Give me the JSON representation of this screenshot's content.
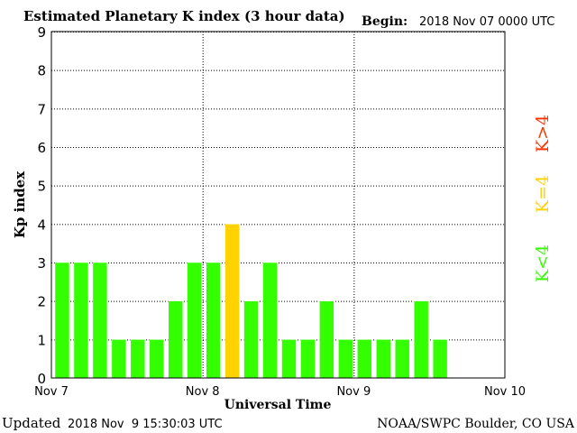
{
  "header": {
    "title": "Estimated Planetary K index (3 hour data)",
    "begin_label": "Begin:",
    "begin_value": "2018 Nov 07 0000 UTC"
  },
  "footer": {
    "updated_label": "Updated",
    "updated_value": "2018 Nov  9 15:30:03 UTC",
    "source": "NOAA/SWPC Boulder, CO USA"
  },
  "legend": {
    "above": "K>4",
    "equal": "K=4",
    "below": "K<4"
  },
  "colors": {
    "below": "#33ff00",
    "equal": "#ffd200",
    "above": "#ff3300",
    "bar_edge": "#ffffff"
  },
  "chart_data": {
    "type": "bar",
    "title": "Estimated Planetary K index (3 hour data)",
    "xlabel": "Universal Time",
    "ylabel": "Kp index",
    "ylim": [
      0,
      9
    ],
    "yticks": [
      "0",
      "1",
      "2",
      "3",
      "4",
      "5",
      "6",
      "7",
      "8",
      "9"
    ],
    "xticks": [
      "Nov 7",
      "Nov 8",
      "Nov 9",
      "Nov 10"
    ],
    "slots": 24,
    "grid": true,
    "values": [
      3,
      3,
      3,
      1,
      1,
      1,
      2,
      3,
      3,
      4,
      2,
      3,
      1,
      1,
      2,
      1,
      1,
      1,
      1,
      2,
      1
    ]
  }
}
